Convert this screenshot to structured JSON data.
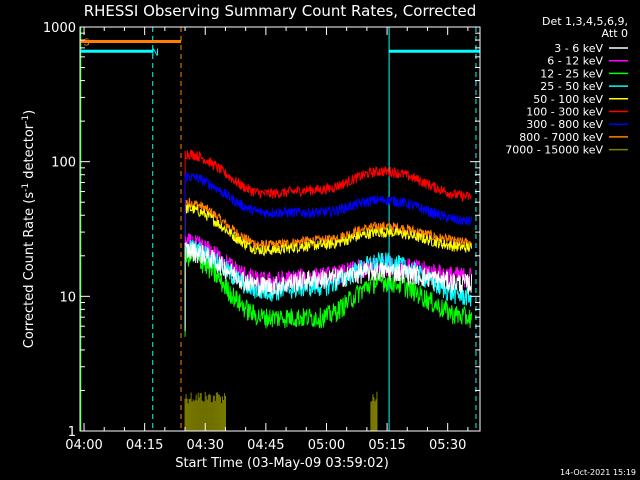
{
  "chart_data": {
    "type": "line",
    "title": "RHESSI Observing Summary Count Rates, Corrected",
    "xlabel": "Start Time (03-May-09 03:59:02)",
    "ylabel_prefix": "Corrected Count Rate (s",
    "ylabel_sup1": "-1",
    "ylabel_mid": " detector",
    "ylabel_sup2": "-1",
    "ylabel_suffix": ")",
    "xlim_min": [
      239,
      338
    ],
    "ylim": [
      1,
      1000
    ],
    "yscale": "log",
    "x_ticks": [
      {
        "label": "04:00",
        "min": 240
      },
      {
        "label": "04:15",
        "min": 255
      },
      {
        "label": "04:30",
        "min": 270
      },
      {
        "label": "04:45",
        "min": 285
      },
      {
        "label": "05:00",
        "min": 300
      },
      {
        "label": "05:15",
        "min": 315
      },
      {
        "label": "05:30",
        "min": 330
      }
    ],
    "y_ticks": [
      {
        "label": "1",
        "value": 1
      },
      {
        "label": "10",
        "value": 10
      },
      {
        "label": "100",
        "value": 100
      },
      {
        "label": "1000",
        "value": 1000
      }
    ],
    "legend": {
      "header_line1": "Det 1,3,4,5,6,9,",
      "header_line2": "Att 0",
      "placement": "right"
    },
    "series": [
      {
        "name": "3 - 6 keV",
        "color": "#ffffff",
        "profile": [
          22,
          12,
          13.5,
          15.5,
          12.5
        ]
      },
      {
        "name": "6 - 12 keV",
        "color": "#ff00ff",
        "profile": [
          25,
          13,
          14,
          17,
          14
        ]
      },
      {
        "name": "12 - 25 keV",
        "color": "#00ff00",
        "profile": [
          20,
          7,
          7,
          13,
          7
        ]
      },
      {
        "name": "25 - 50 keV",
        "color": "#00ffff",
        "profile": [
          23,
          11,
          12,
          18,
          10
        ]
      },
      {
        "name": "50 - 100 keV",
        "color": "#ffff00",
        "profile": [
          45,
          22,
          24,
          30,
          23
        ]
      },
      {
        "name": "100 - 300 keV",
        "color": "#ff0000",
        "profile": [
          115,
          58,
          62,
          85,
          55
        ]
      },
      {
        "name": "300 - 800 keV",
        "color": "#0000ff",
        "profile": [
          78,
          42,
          42,
          52,
          36
        ]
      },
      {
        "name": "800 - 7000 keV",
        "color": "#ff8000",
        "profile": [
          50,
          24,
          26,
          33,
          25
        ]
      },
      {
        "name": "7000 - 15000 keV",
        "color": "#808000",
        "profile": []
      }
    ],
    "profile_times_min": [
      265,
      285,
      298,
      314,
      336
    ],
    "data_start_min": 265,
    "data_end_min": 336,
    "flags": [
      {
        "label": "S",
        "color": "#ff8000",
        "segments": [
          [
            239,
            264
          ]
        ],
        "value": 780
      },
      {
        "label": "N",
        "color": "#00ffff",
        "segments": [
          [
            239,
            257
          ],
          [
            315.5,
            338
          ]
        ],
        "value": 660
      }
    ],
    "vertical_markers": [
      {
        "time_min": 257,
        "color": "#00ffff",
        "style": "dashed"
      },
      {
        "time_min": 264,
        "color": "#ff8000",
        "style": "dashed"
      },
      {
        "time_min": 315.5,
        "color": "#00ffff",
        "style": "solid"
      },
      {
        "time_min": 337,
        "color": "#00ffff",
        "style": "dashed"
      },
      {
        "time_min": 239.2,
        "color": "#00ff00",
        "style": "solid"
      }
    ],
    "olive_bursts": [
      [
        265,
        275
      ],
      [
        311,
        312.5
      ]
    ],
    "grid": false
  },
  "footer": {
    "timestamp": "14-Oct-2021 15:19"
  }
}
